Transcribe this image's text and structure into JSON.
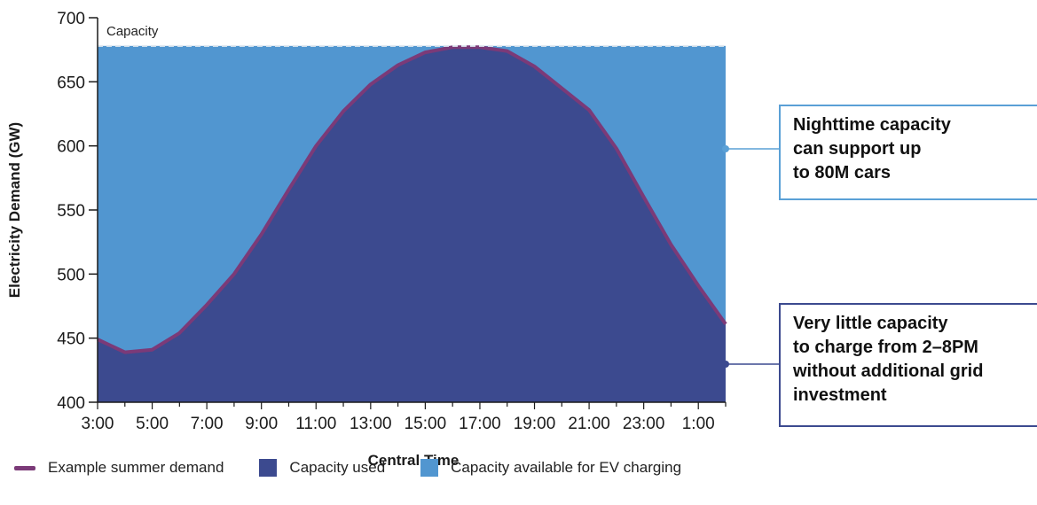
{
  "chart_data": {
    "type": "area",
    "ylabel": "Electricity Demand (GW)",
    "xlabel": "Central Time",
    "ylim": [
      400,
      700
    ],
    "yticks": [
      400,
      450,
      500,
      550,
      600,
      650,
      700
    ],
    "xtick_labels": [
      "3:00",
      "5:00",
      "7:00",
      "9:00",
      "11:00",
      "13:00",
      "15:00",
      "17:00",
      "19:00",
      "21:00",
      "23:00",
      "1:00"
    ],
    "x_hours": [
      "3:00",
      "4:00",
      "5:00",
      "6:00",
      "7:00",
      "8:00",
      "9:00",
      "10:00",
      "11:00",
      "12:00",
      "13:00",
      "14:00",
      "15:00",
      "16:00",
      "17:00",
      "18:00",
      "19:00",
      "20:00",
      "21:00",
      "22:00",
      "23:00",
      "0:00",
      "1:00",
      "2:00"
    ],
    "capacity": 678,
    "capacity_label": "Capacity",
    "series": [
      {
        "name": "Example summer demand",
        "values": [
          449,
          439,
          441,
          454,
          476,
          500,
          531,
          566,
          600,
          627,
          648,
          663,
          673,
          677,
          677,
          674,
          662,
          645,
          628,
          598,
          560,
          523,
          491,
          461
        ]
      }
    ],
    "legend": [
      "Example summer demand",
      "Capacity used",
      "Capacity available for EV charging"
    ],
    "colors": {
      "demand_line": "#7b3a78",
      "capacity_used": "#3c4a8f",
      "capacity_available": "#5196d0",
      "capacity_line": "#dfe8f0",
      "callout_night": "#5aa0d6",
      "callout_day": "#3c4a8f"
    },
    "grid": false,
    "legend_placement": "bottom-left"
  },
  "callouts": {
    "night": [
      "Nighttime capacity",
      "can support up",
      "to 80M cars"
    ],
    "day": [
      "Very little capacity",
      "to charge from 2–8PM",
      "without additional grid",
      "investment"
    ]
  }
}
